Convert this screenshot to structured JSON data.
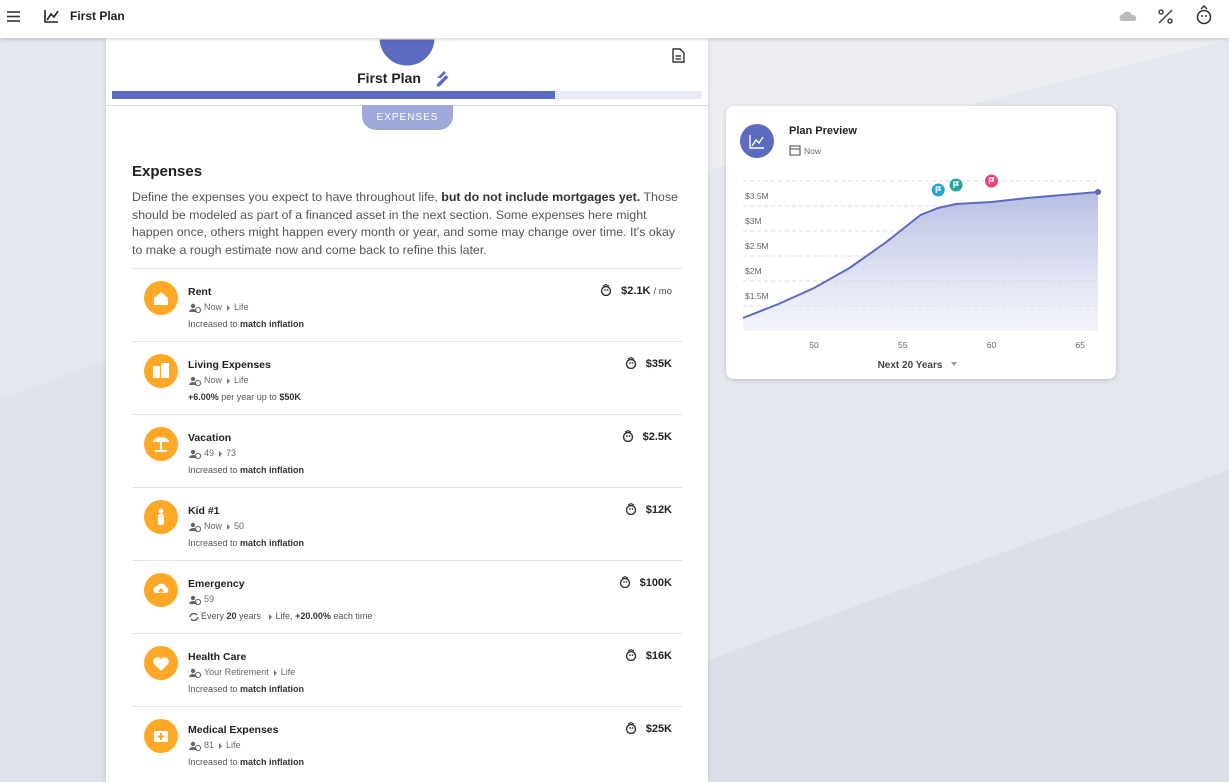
{
  "app_bar": {
    "title": "First Plan"
  },
  "plan": {
    "title": "First Plan",
    "tab": "EXPENSES"
  },
  "section": {
    "title": "Expenses",
    "description": [
      "Define the expenses you expect to have throughout life, ",
      "but do not include mortgages yet.",
      " Those should be modeled as part of a financed asset in the next section. Some expenses here might happen once, others might happen every month or year, and some may change over time. It's okay to make a rough estimate now and come back to refine this later."
    ]
  },
  "expenses": [
    {
      "name": "Rent",
      "timeline": [
        "Now",
        "Life"
      ],
      "growth": [
        {
          "t": "Increased to "
        },
        {
          "b": "match inflation"
        }
      ],
      "amount": "$2.1K",
      "period": "/ mo"
    },
    {
      "name": "Living Expenses",
      "timeline": [
        "Now",
        "Life"
      ],
      "growth": [
        {
          "b": "+6.00%"
        },
        {
          "t": " per year up to "
        },
        {
          "b": "$50K"
        }
      ],
      "amount": "$35K"
    },
    {
      "name": "Vacation",
      "timeline": [
        "49",
        "73"
      ],
      "growth": [
        {
          "t": "Increased to "
        },
        {
          "b": "match inflation"
        }
      ],
      "amount": "$2.5K"
    },
    {
      "name": "Kid #1",
      "timeline": [
        "Now",
        "50"
      ],
      "growth": [
        {
          "t": "Increased to "
        },
        {
          "b": "match inflation"
        }
      ],
      "amount": "$12K"
    },
    {
      "name": "Emergency",
      "timeline": [
        "59"
      ],
      "recurring": true,
      "growth": [
        {
          "t": "Every "
        },
        {
          "b": "20"
        },
        {
          "t": " years "
        },
        {
          "t": "Life, ",
          "arrow": true
        },
        {
          "b": "+20.00%"
        },
        {
          "t": " each time"
        }
      ],
      "amount": "$100K"
    },
    {
      "name": "Health Care",
      "timeline": [
        "Your Retirement",
        "Life"
      ],
      "growth": [
        {
          "t": "Increased to "
        },
        {
          "b": "match inflation"
        }
      ],
      "amount": "$16K"
    },
    {
      "name": "Medical Expenses",
      "timeline": [
        "81",
        "Life"
      ],
      "growth": [
        {
          "t": "Increased to "
        },
        {
          "b": "match inflation"
        }
      ],
      "amount": "$25K"
    }
  ],
  "chart_data": {
    "type": "area",
    "title": "Plan Preview",
    "subtitle": "Now",
    "footer": "Next 20 Years",
    "x": [
      46,
      48,
      50,
      52,
      54,
      56,
      57,
      58,
      60,
      62,
      64,
      66
    ],
    "values": [
      1.26,
      1.54,
      1.86,
      2.26,
      2.76,
      3.32,
      3.46,
      3.54,
      3.58,
      3.66,
      3.72,
      3.78
    ],
    "color": "#5c6bc0",
    "xlim": [
      46,
      66
    ],
    "xticks": [
      50,
      55,
      60,
      65
    ],
    "ylim": [
      1,
      4
    ],
    "yticks": [
      {
        "value": 1.5,
        "label": "$1.5M"
      },
      {
        "value": 2,
        "label": "$2M"
      },
      {
        "value": 2.5,
        "label": "$2.5M"
      },
      {
        "value": 3,
        "label": "$3M"
      },
      {
        "value": 3.5,
        "label": "$3.5M"
      }
    ],
    "grid": true,
    "events": {
      "x": [
        57,
        58,
        60
      ],
      "colors": [
        "#29a3d6",
        "#26a69a",
        "#ec407a"
      ]
    }
  }
}
